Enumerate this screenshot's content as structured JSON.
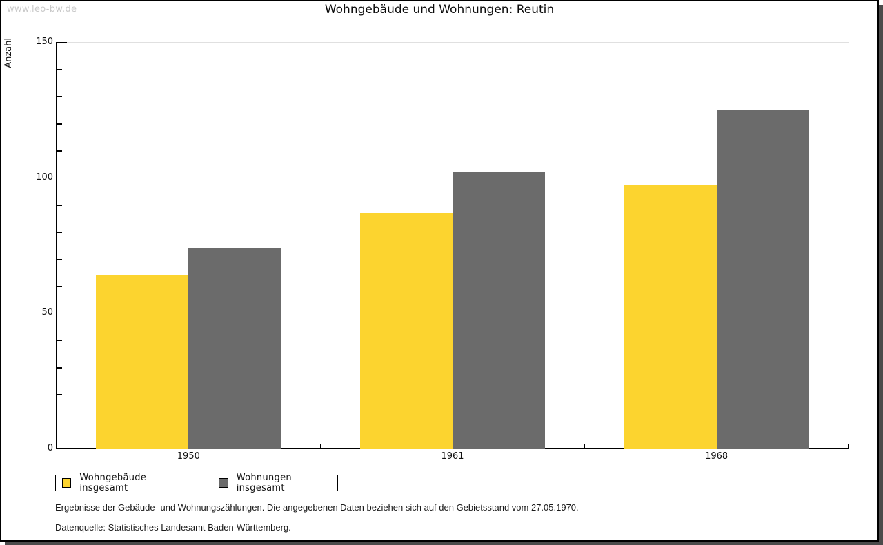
{
  "watermark": "www.leo-bw.de",
  "title": "Wohngebäude und Wohnungen: Reutin",
  "chart_data": {
    "type": "bar",
    "title": "Wohngebäude und Wohnungen: Reutin",
    "categories": [
      "1950",
      "1961",
      "1968"
    ],
    "series": [
      {
        "name": "Wohngebäude insgesamt",
        "color": "#FCD42F",
        "values": [
          64,
          87,
          97
        ]
      },
      {
        "name": "Wohnungen insgesamt",
        "color": "#6B6B6B",
        "values": [
          74,
          102,
          125
        ]
      }
    ],
    "xlabel": "",
    "ylabel": "Anzahl",
    "ylim": [
      0,
      150
    ],
    "y_major_ticks": [
      0,
      50,
      100,
      150
    ],
    "y_minor_step": 10,
    "grid": "horizontal-major",
    "gridline_color": "#e0e0e0",
    "legend_position": "bottom-left"
  },
  "footnotes": [
    "Ergebnisse der Gebäude- und Wohnungszählungen. Die angegebenen Daten beziehen sich auf den Gebietsstand vom 27.05.1970.",
    "Datenquelle: Statistisches Landesamt Baden-Württemberg."
  ]
}
